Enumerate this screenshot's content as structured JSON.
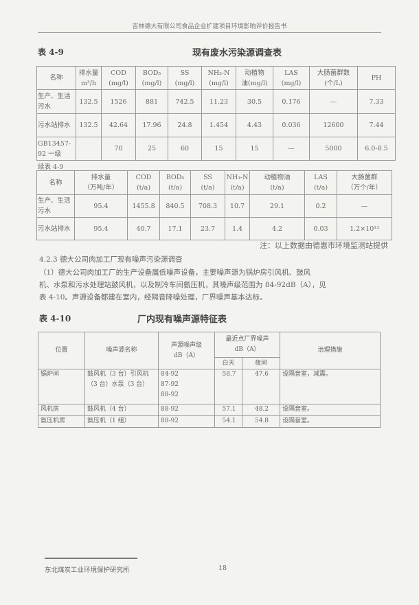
{
  "header": {
    "title": "吉林德大有限公司食品企业扩建项目环境影响评价报告书"
  },
  "table1": {
    "caption": "表 4-9",
    "title": "现有废水污染源调查表",
    "headers": [
      "名称",
      "排水量\nm³/h",
      "COD\n(mg/l)",
      "BOD₅\n(mg/l)",
      "SS\n(mg/l)",
      "NH₃-N\n(mg/l)",
      "动植物\n油(mg/l)",
      "LAS\n(mg/l)",
      "大肠菌群数\n(个/L)",
      "PH"
    ],
    "rows": [
      [
        "生产、生活污水",
        "132.5",
        "1526",
        "881",
        "742.5",
        "11.23",
        "30.5",
        "0.176",
        "—",
        "7.33"
      ],
      [
        "污水站排水",
        "132.5",
        "42.64",
        "17.96",
        "24.8",
        "1.454",
        "4.43",
        "0.036",
        "12600",
        "7.44"
      ],
      [
        "GB13457-92 一级",
        "",
        "70",
        "25",
        "60",
        "15",
        "15",
        "—",
        "5000",
        "6.0-8.5"
      ]
    ]
  },
  "table2": {
    "caption": "续表 4-9",
    "headers": [
      "名称",
      "排水量\n（万吨/年）",
      "COD\n(t/a)",
      "BOD₅\n(t/a)",
      "SS\n(t/a)",
      "NH₃-N\n(t/a)",
      "动植物油\n(t/a)",
      "LAS\n(t/a)",
      "大肠菌群\n（万个/年）"
    ],
    "rows": [
      [
        "生产、生活污水",
        "95.4",
        "1455.8",
        "840.5",
        "708.3",
        "10.7",
        "29.1",
        "0.2",
        "—"
      ],
      [
        "污水站排水",
        "95.4",
        "40.7",
        "17.1",
        "23.7",
        "1.4",
        "4.2",
        "0.03",
        "1.2×10¹³"
      ]
    ],
    "note": "注：以上数据由德惠市环境监测站提供"
  },
  "section": {
    "heading": "4.2.3 德大公司肉加工厂现有噪声污染源调查",
    "lines": [
      "（1）德大公司肉加工厂的生产设备属低噪声设备，主要噪声源为锅炉房引风机、鼓风",
      "机、水泵和污水处理站鼓风机，以及制冷车间氨压机，其噪声级范围为 84-92dB（A），见",
      "表 4-10。声源设备都建在室内，经隔音降噪处理，厂界噪声基本达标。"
    ]
  },
  "table3": {
    "caption": "表 4-10",
    "title": "厂内现有噪声源特征表",
    "headers": {
      "location": "位置",
      "source": "噪声源名称",
      "level": "声源噪声级\ndB（A）",
      "boundary": "最近点厂界噪声\ndB（A）",
      "day": "白天",
      "night": "夜间",
      "measure": "治理措施"
    },
    "rows": [
      {
        "location": "锅炉间",
        "source": "鼓风机（3 台）引风机（3 台）水泵（3 台）",
        "level": "84-92\n87-92\n88-92",
        "day": "58.7",
        "night": "47.6",
        "measure": "设隔音室，减震。"
      },
      {
        "location": "风机房",
        "source": "鼓风机（4 台）",
        "level": "88-92",
        "day": "57.1",
        "night": "48.2",
        "measure": "设隔音室。"
      },
      {
        "location": "氨压机房",
        "source": "氨压机（1 组）",
        "level": "88-92",
        "day": "54.1",
        "night": "54.8",
        "measure": "设隔音室。"
      }
    ]
  },
  "footer": {
    "org": "东北煤炭工业环境保护研究所",
    "page": "18"
  }
}
